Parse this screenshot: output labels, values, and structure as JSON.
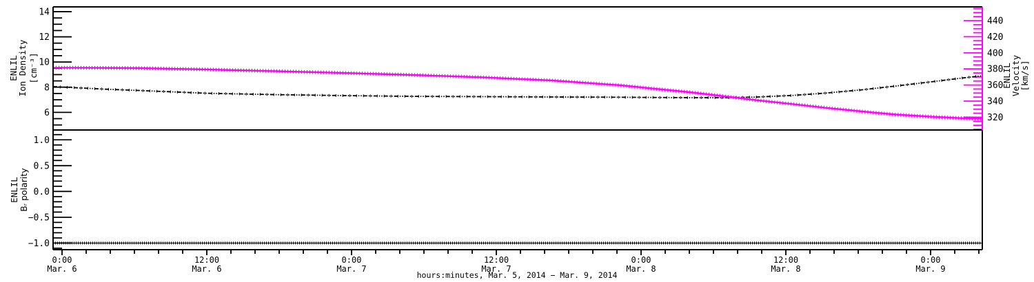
{
  "x_axis": {
    "title": "hours:minutes, Mar.  5, 2014 − Mar.  9, 2014",
    "range_hours": [
      -0.743,
      76.286
    ],
    "hours_zero_reference": "Mar. 6, 2014 00:00",
    "major_ticks_hours": [
      0,
      12,
      24,
      36,
      48,
      60,
      72
    ],
    "major_tick_labels": [
      {
        "time": "0:00",
        "date": "Mar. 6"
      },
      {
        "time": "12:00",
        "date": "Mar. 6"
      },
      {
        "time": "0:00",
        "date": "Mar. 7"
      },
      {
        "time": "12:00",
        "date": "Mar. 7"
      },
      {
        "time": "0:00",
        "date": "Mar. 8"
      },
      {
        "time": "12:00",
        "date": "Mar. 8"
      },
      {
        "time": "0:00",
        "date": "Mar. 9"
      }
    ],
    "minor_step_hours": 2
  },
  "chart_data": [
    {
      "type": "line",
      "panel": "top",
      "x": [
        -0.74,
        3.4,
        6.3,
        12,
        17.7,
        23.4,
        29.1,
        34.9,
        40.6,
        46.3,
        52,
        54.9,
        57.7,
        60.6,
        63.4,
        66.3,
        69.1,
        72,
        74.3,
        76.29
      ],
      "series": [
        {
          "name": "ENLIL Ion Density",
          "unit": "cm⁻³",
          "axis": "left",
          "color": "#000000",
          "style": "dashdot",
          "values": [
            8.05,
            7.85,
            7.74,
            7.52,
            7.41,
            7.33,
            7.27,
            7.25,
            7.22,
            7.2,
            7.17,
            7.16,
            7.22,
            7.35,
            7.54,
            7.79,
            8.09,
            8.42,
            8.69,
            8.91
          ]
        },
        {
          "name": "ENLIL Velocity",
          "unit": "km/s",
          "axis": "right",
          "color": "#ff00ff",
          "style": "thick-markers",
          "values": [
            381.5,
            381.3,
            381,
            379.3,
            377.2,
            375,
            372.5,
            369.5,
            365.6,
            359.7,
            351.1,
            346,
            340.9,
            336.2,
            331.5,
            327.2,
            323.3,
            320.7,
            319,
            318.2
          ]
        }
      ],
      "left_axis": {
        "title_lines": [
          "ENLIL",
          "Ion Density"
        ],
        "unit_label": "[cm⁻³]",
        "range": [
          4.6,
          14.38
        ],
        "major_ticks": [
          6,
          8,
          10,
          12,
          14
        ],
        "labels": [
          "6",
          "8",
          "10",
          "12",
          "14"
        ],
        "minor_step": 0.5,
        "color": "#000000"
      },
      "right_axis": {
        "title_lines": [
          "ENLIL",
          "Velocity",
          "[km/s]"
        ],
        "range": [
          304.1,
          457.1
        ],
        "major_ticks": [
          320,
          340,
          360,
          380,
          400,
          420,
          440
        ],
        "labels": [
          "320",
          "340",
          "360",
          "380",
          "400",
          "420",
          "440"
        ],
        "minor_step": 5,
        "color": "#ff00ff",
        "title_color": "#000000"
      }
    },
    {
      "type": "line",
      "panel": "bottom",
      "x": [
        -0.743,
        76.286
      ],
      "series": [
        {
          "name": "ENLIL Br polarity",
          "unit": "",
          "axis": "left",
          "color": "#000000",
          "style": "dotted",
          "values": [
            -1,
            -1
          ]
        }
      ],
      "left_axis": {
        "title_lines": [
          "ENLIL",
          "Bᵣ polarity"
        ],
        "range": [
          -1.128,
          1.19
        ],
        "major_ticks": [
          -1,
          -0.5,
          0,
          0.5,
          1
        ],
        "labels": [
          "−1.0",
          "−0.5",
          "0.0",
          "0.5",
          "1.0"
        ],
        "minor_step": 0.1,
        "color": "#000000"
      }
    }
  ]
}
